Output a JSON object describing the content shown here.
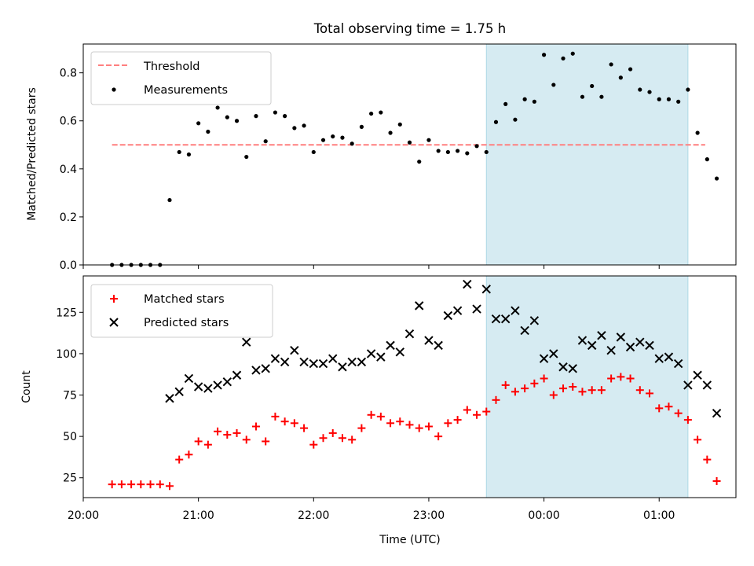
{
  "chart_data": [
    {
      "type": "scatter",
      "title": "Total observing time = 1.75 h",
      "xlabel": "",
      "ylabel": "Matched/Predicted stars",
      "xlim": [
        0,
        340
      ],
      "ylim": [
        0,
        0.92
      ],
      "x_ticks": [
        0,
        60,
        120,
        180,
        240,
        300
      ],
      "y_ticks": [
        0.0,
        0.2,
        0.4,
        0.6,
        0.8
      ],
      "y_tick_labels": [
        "0.0",
        "0.2",
        "0.4",
        "0.6",
        "0.8"
      ],
      "highlight": {
        "x_start": 210,
        "x_end": 315,
        "color": "#add8e6"
      },
      "legend": {
        "position": "top-left",
        "entries": [
          "Threshold",
          "Measurements"
        ]
      },
      "series": [
        {
          "name": "Threshold",
          "kind": "dashed-line",
          "color": "#ff7f7f",
          "points": [
            [
              15,
              0.5
            ],
            [
              324,
              0.5
            ]
          ]
        },
        {
          "name": "Measurements",
          "kind": "dot",
          "color": "#000000",
          "points": [
            [
              15,
              0.0
            ],
            [
              20,
              0.0
            ],
            [
              25,
              0.0
            ],
            [
              30,
              0.0
            ],
            [
              35,
              0.0
            ],
            [
              40,
              0.0
            ],
            [
              45,
              0.27
            ],
            [
              50,
              0.47
            ],
            [
              55,
              0.46
            ],
            [
              60,
              0.59
            ],
            [
              65,
              0.555
            ],
            [
              70,
              0.655
            ],
            [
              75,
              0.615
            ],
            [
              80,
              0.6
            ],
            [
              85,
              0.45
            ],
            [
              90,
              0.62
            ],
            [
              95,
              0.515
            ],
            [
              100,
              0.635
            ],
            [
              105,
              0.62
            ],
            [
              110,
              0.57
            ],
            [
              115,
              0.58
            ],
            [
              120,
              0.47
            ],
            [
              125,
              0.52
            ],
            [
              130,
              0.535
            ],
            [
              135,
              0.53
            ],
            [
              140,
              0.505
            ],
            [
              145,
              0.575
            ],
            [
              150,
              0.63
            ],
            [
              155,
              0.635
            ],
            [
              160,
              0.55
            ],
            [
              165,
              0.585
            ],
            [
              170,
              0.51
            ],
            [
              175,
              0.43
            ],
            [
              180,
              0.52
            ],
            [
              185,
              0.475
            ],
            [
              190,
              0.47
            ],
            [
              195,
              0.475
            ],
            [
              200,
              0.465
            ],
            [
              205,
              0.495
            ],
            [
              210,
              0.47
            ],
            [
              215,
              0.595
            ],
            [
              220,
              0.67
            ],
            [
              225,
              0.605
            ],
            [
              230,
              0.69
            ],
            [
              235,
              0.68
            ],
            [
              240,
              0.875
            ],
            [
              245,
              0.75
            ],
            [
              250,
              0.86
            ],
            [
              255,
              0.88
            ],
            [
              260,
              0.7
            ],
            [
              265,
              0.745
            ],
            [
              270,
              0.7
            ],
            [
              275,
              0.835
            ],
            [
              280,
              0.78
            ],
            [
              285,
              0.815
            ],
            [
              290,
              0.73
            ],
            [
              295,
              0.72
            ],
            [
              300,
              0.69
            ],
            [
              305,
              0.69
            ],
            [
              310,
              0.68
            ],
            [
              315,
              0.73
            ],
            [
              320,
              0.55
            ],
            [
              325,
              0.44
            ],
            [
              330,
              0.36
            ]
          ]
        }
      ]
    },
    {
      "type": "scatter",
      "title": "",
      "xlabel": "Time (UTC)",
      "ylabel": "Count",
      "xlim": [
        0,
        340
      ],
      "ylim": [
        13,
        147
      ],
      "x_ticks": [
        0,
        60,
        120,
        180,
        240,
        300
      ],
      "x_tick_labels": [
        "20:00",
        "21:00",
        "22:00",
        "23:00",
        "00:00",
        "01:00"
      ],
      "y_ticks": [
        25,
        50,
        75,
        100,
        125
      ],
      "y_tick_labels": [
        "25",
        "50",
        "75",
        "100",
        "125"
      ],
      "highlight": {
        "x_start": 210,
        "x_end": 315,
        "color": "#add8e6"
      },
      "legend": {
        "position": "top-left",
        "entries": [
          "Matched stars",
          "Predicted stars"
        ]
      },
      "series": [
        {
          "name": "Matched stars",
          "marker": "plus",
          "color": "#ff0000",
          "points": [
            [
              15,
              21
            ],
            [
              20,
              21
            ],
            [
              25,
              21
            ],
            [
              30,
              21
            ],
            [
              35,
              21
            ],
            [
              40,
              21
            ],
            [
              45,
              20
            ],
            [
              50,
              36
            ],
            [
              55,
              39
            ],
            [
              60,
              47
            ],
            [
              65,
              45
            ],
            [
              70,
              53
            ],
            [
              75,
              51
            ],
            [
              80,
              52
            ],
            [
              85,
              48
            ],
            [
              90,
              56
            ],
            [
              95,
              47
            ],
            [
              100,
              62
            ],
            [
              105,
              59
            ],
            [
              110,
              58
            ],
            [
              115,
              55
            ],
            [
              120,
              45
            ],
            [
              125,
              49
            ],
            [
              130,
              52
            ],
            [
              135,
              49
            ],
            [
              140,
              48
            ],
            [
              145,
              55
            ],
            [
              150,
              63
            ],
            [
              155,
              62
            ],
            [
              160,
              58
            ],
            [
              165,
              59
            ],
            [
              170,
              57
            ],
            [
              175,
              55
            ],
            [
              180,
              56
            ],
            [
              185,
              50
            ],
            [
              190,
              58
            ],
            [
              195,
              60
            ],
            [
              200,
              66
            ],
            [
              205,
              63
            ],
            [
              210,
              65
            ],
            [
              215,
              72
            ],
            [
              220,
              81
            ],
            [
              225,
              77
            ],
            [
              230,
              79
            ],
            [
              235,
              82
            ],
            [
              240,
              85
            ],
            [
              245,
              75
            ],
            [
              250,
              79
            ],
            [
              255,
              80
            ],
            [
              260,
              77
            ],
            [
              265,
              78
            ],
            [
              270,
              78
            ],
            [
              275,
              85
            ],
            [
              280,
              86
            ],
            [
              285,
              85
            ],
            [
              290,
              78
            ],
            [
              295,
              76
            ],
            [
              300,
              67
            ],
            [
              305,
              68
            ],
            [
              310,
              64
            ],
            [
              315,
              60
            ],
            [
              320,
              48
            ],
            [
              325,
              36
            ],
            [
              330,
              23
            ]
          ]
        },
        {
          "name": "Predicted stars",
          "marker": "x",
          "color": "#000000",
          "points": [
            [
              45,
              73
            ],
            [
              50,
              77
            ],
            [
              55,
              85
            ],
            [
              60,
              80
            ],
            [
              65,
              79
            ],
            [
              70,
              81
            ],
            [
              75,
              83
            ],
            [
              80,
              87
            ],
            [
              85,
              107
            ],
            [
              90,
              90
            ],
            [
              95,
              91
            ],
            [
              100,
              97
            ],
            [
              105,
              95
            ],
            [
              110,
              102
            ],
            [
              115,
              95
            ],
            [
              120,
              94
            ],
            [
              125,
              94
            ],
            [
              130,
              97
            ],
            [
              135,
              92
            ],
            [
              140,
              95
            ],
            [
              145,
              95
            ],
            [
              150,
              100
            ],
            [
              155,
              98
            ],
            [
              160,
              105
            ],
            [
              165,
              101
            ],
            [
              170,
              112
            ],
            [
              175,
              129
            ],
            [
              180,
              108
            ],
            [
              185,
              105
            ],
            [
              190,
              123
            ],
            [
              195,
              126
            ],
            [
              200,
              142
            ],
            [
              205,
              127
            ],
            [
              210,
              139
            ],
            [
              215,
              121
            ],
            [
              220,
              121
            ],
            [
              225,
              126
            ],
            [
              230,
              114
            ],
            [
              235,
              120
            ],
            [
              240,
              97
            ],
            [
              245,
              100
            ],
            [
              250,
              92
            ],
            [
              255,
              91
            ],
            [
              260,
              108
            ],
            [
              265,
              105
            ],
            [
              270,
              111
            ],
            [
              275,
              102
            ],
            [
              280,
              110
            ],
            [
              285,
              104
            ],
            [
              290,
              107
            ],
            [
              295,
              105
            ],
            [
              300,
              97
            ],
            [
              305,
              98
            ],
            [
              310,
              94
            ],
            [
              315,
              81
            ],
            [
              320,
              87
            ],
            [
              325,
              81
            ],
            [
              330,
              64
            ]
          ]
        }
      ]
    }
  ]
}
